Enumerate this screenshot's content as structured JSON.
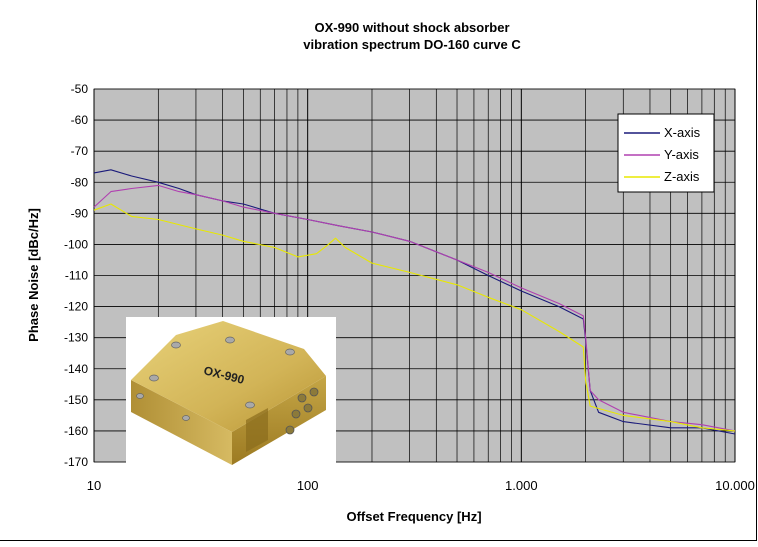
{
  "chart_data": {
    "type": "line",
    "title": "OX-990 without shock absorber",
    "subtitle": "vibration spectrum DO-160 curve C",
    "xlabel": "Offset Frequency [Hz]",
    "ylabel": "Phase Noise [dBc/Hz]",
    "x_scale": "log",
    "xlim": [
      10,
      10000
    ],
    "ylim": [
      -170,
      -50
    ],
    "grid": true,
    "legend_position": "top-right",
    "x_ticks": [
      {
        "value": 10,
        "label": "10"
      },
      {
        "value": 100,
        "label": "100"
      },
      {
        "value": 1000,
        "label": "1.000"
      },
      {
        "value": 10000,
        "label": "10.000"
      }
    ],
    "y_ticks": [
      -50,
      -60,
      -70,
      -80,
      -90,
      -100,
      -110,
      -120,
      -130,
      -140,
      -150,
      -160,
      -170
    ],
    "series": [
      {
        "name": "X-axis",
        "color": "#1a1a7a",
        "points": [
          [
            10,
            -77
          ],
          [
            12,
            -76
          ],
          [
            15,
            -78
          ],
          [
            20,
            -80
          ],
          [
            25,
            -82
          ],
          [
            30,
            -84
          ],
          [
            40,
            -86
          ],
          [
            50,
            -87
          ],
          [
            70,
            -90
          ],
          [
            100,
            -92
          ],
          [
            140,
            -94
          ],
          [
            200,
            -96
          ],
          [
            300,
            -99
          ],
          [
            500,
            -105
          ],
          [
            700,
            -110
          ],
          [
            1000,
            -115
          ],
          [
            1500,
            -120
          ],
          [
            1950,
            -124
          ],
          [
            2000,
            -131
          ],
          [
            2100,
            -147
          ],
          [
            2300,
            -154
          ],
          [
            3000,
            -157
          ],
          [
            5000,
            -159
          ],
          [
            7000,
            -159
          ],
          [
            10000,
            -161
          ]
        ]
      },
      {
        "name": "Y-axis",
        "color": "#b040b0",
        "points": [
          [
            10,
            -88
          ],
          [
            12,
            -83
          ],
          [
            15,
            -82
          ],
          [
            20,
            -81
          ],
          [
            25,
            -83
          ],
          [
            30,
            -84
          ],
          [
            40,
            -86
          ],
          [
            50,
            -88
          ],
          [
            70,
            -90
          ],
          [
            100,
            -92
          ],
          [
            140,
            -94
          ],
          [
            200,
            -96
          ],
          [
            300,
            -99
          ],
          [
            500,
            -105
          ],
          [
            700,
            -109
          ],
          [
            1000,
            -114
          ],
          [
            1500,
            -119
          ],
          [
            1950,
            -123
          ],
          [
            2000,
            -130
          ],
          [
            2100,
            -147
          ],
          [
            2300,
            -150
          ],
          [
            3000,
            -154
          ],
          [
            5000,
            -157
          ],
          [
            7000,
            -158
          ],
          [
            10000,
            -160
          ]
        ]
      },
      {
        "name": "Z-axis",
        "color": "#e8e800",
        "points": [
          [
            10,
            -89
          ],
          [
            12,
            -87
          ],
          [
            15,
            -91
          ],
          [
            20,
            -92
          ],
          [
            30,
            -95
          ],
          [
            40,
            -97
          ],
          [
            50,
            -99
          ],
          [
            70,
            -101
          ],
          [
            90,
            -104
          ],
          [
            110,
            -103
          ],
          [
            125,
            -100
          ],
          [
            135,
            -98
          ],
          [
            150,
            -101
          ],
          [
            200,
            -106
          ],
          [
            300,
            -109
          ],
          [
            500,
            -113
          ],
          [
            700,
            -117
          ],
          [
            1000,
            -121
          ],
          [
            1500,
            -128
          ],
          [
            1950,
            -133
          ],
          [
            2000,
            -144
          ],
          [
            2100,
            -152
          ],
          [
            3000,
            -155
          ],
          [
            5000,
            -157
          ],
          [
            7000,
            -159
          ],
          [
            10000,
            -160
          ]
        ]
      }
    ]
  },
  "inset": {
    "label": "OX-990"
  }
}
